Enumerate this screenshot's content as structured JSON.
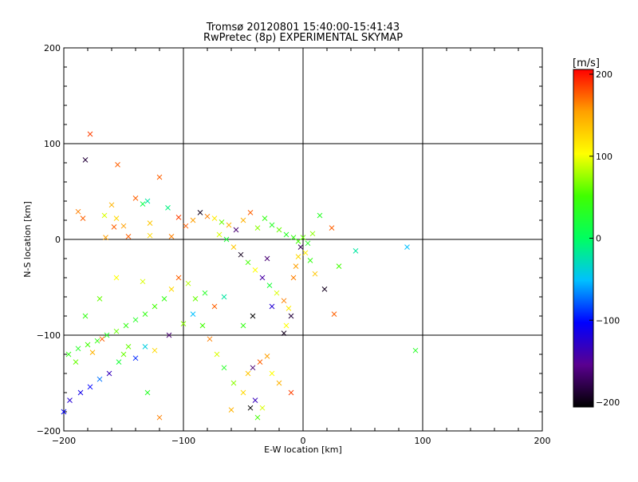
{
  "chart_data": {
    "type": "scatter",
    "title": "Tromsø 20120801 15:40:00-15:41:43",
    "subtitle": "RwPretec (8p) EXPERIMENTAL SKYMAP",
    "xlabel": "E-W location [km]",
    "ylabel": "N-S location [km]",
    "xlim": [
      -200,
      200
    ],
    "ylim": [
      -200,
      200
    ],
    "x_ticks": [
      "−200",
      "−100",
      "0",
      "100",
      "200"
    ],
    "y_ticks": [
      "−200",
      "−100",
      "0",
      "100",
      "200"
    ],
    "grid": true,
    "colorbar": {
      "label": "[m/s]",
      "min": -200,
      "max": 200,
      "ticks": [
        "200",
        "100",
        "0",
        "−100",
        "−200"
      ],
      "colors": [
        "#000000",
        "#5a0090",
        "#0000ff",
        "#00c0ff",
        "#00ff60",
        "#40ff00",
        "#ffff00",
        "#ffa000",
        "#ff0000"
      ]
    },
    "points": [
      {
        "x": -178,
        "y": 110,
        "v": 180
      },
      {
        "x": -182,
        "y": 83,
        "v": -180
      },
      {
        "x": -155,
        "y": 78,
        "v": 170
      },
      {
        "x": -120,
        "y": 65,
        "v": 170
      },
      {
        "x": -188,
        "y": 29,
        "v": 160
      },
      {
        "x": -184,
        "y": 22,
        "v": 170
      },
      {
        "x": -166,
        "y": 25,
        "v": 90
      },
      {
        "x": -160,
        "y": 36,
        "v": 140
      },
      {
        "x": -156,
        "y": 22,
        "v": 120
      },
      {
        "x": -150,
        "y": 14,
        "v": 150
      },
      {
        "x": -140,
        "y": 43,
        "v": 170
      },
      {
        "x": -134,
        "y": 37,
        "v": 10
      },
      {
        "x": -130,
        "y": 40,
        "v": -20
      },
      {
        "x": -128,
        "y": 17,
        "v": 130
      },
      {
        "x": -113,
        "y": 33,
        "v": -10
      },
      {
        "x": -104,
        "y": 23,
        "v": 180
      },
      {
        "x": -165,
        "y": 2,
        "v": 150
      },
      {
        "x": -158,
        "y": 13,
        "v": 170
      },
      {
        "x": -146,
        "y": 3,
        "v": 170
      },
      {
        "x": -128,
        "y": 4,
        "v": 120
      },
      {
        "x": -110,
        "y": 3,
        "v": 160
      },
      {
        "x": -98,
        "y": 14,
        "v": 170
      },
      {
        "x": -92,
        "y": 20,
        "v": 150
      },
      {
        "x": -86,
        "y": 28,
        "v": -190
      },
      {
        "x": -80,
        "y": 24,
        "v": 160
      },
      {
        "x": -74,
        "y": 22,
        "v": 110
      },
      {
        "x": -68,
        "y": 18,
        "v": 60
      },
      {
        "x": -62,
        "y": 15,
        "v": 140
      },
      {
        "x": -56,
        "y": 10,
        "v": -160
      },
      {
        "x": -50,
        "y": 20,
        "v": 140
      },
      {
        "x": -44,
        "y": 28,
        "v": 170
      },
      {
        "x": -38,
        "y": 12,
        "v": 70
      },
      {
        "x": -32,
        "y": 22,
        "v": 40
      },
      {
        "x": -26,
        "y": 15,
        "v": 30
      },
      {
        "x": -20,
        "y": 10,
        "v": 60
      },
      {
        "x": -14,
        "y": 5,
        "v": 30
      },
      {
        "x": -8,
        "y": 2,
        "v": 40
      },
      {
        "x": -4,
        "y": -2,
        "v": 50
      },
      {
        "x": 0,
        "y": 2,
        "v": 60
      },
      {
        "x": 4,
        "y": -4,
        "v": 30
      },
      {
        "x": 8,
        "y": 6,
        "v": 70
      },
      {
        "x": 14,
        "y": 25,
        "v": 30
      },
      {
        "x": 24,
        "y": 12,
        "v": 170
      },
      {
        "x": 30,
        "y": -28,
        "v": 50
      },
      {
        "x": 44,
        "y": -12,
        "v": -20
      },
      {
        "x": 87,
        "y": -8,
        "v": -50
      },
      {
        "x": 94,
        "y": -116,
        "v": 30
      },
      {
        "x": -70,
        "y": 5,
        "v": 90
      },
      {
        "x": -64,
        "y": 0,
        "v": 20
      },
      {
        "x": -58,
        "y": -8,
        "v": 130
      },
      {
        "x": -52,
        "y": -16,
        "v": -190
      },
      {
        "x": -46,
        "y": -24,
        "v": 50
      },
      {
        "x": -40,
        "y": -32,
        "v": 100
      },
      {
        "x": -34,
        "y": -40,
        "v": -140
      },
      {
        "x": -28,
        "y": -48,
        "v": 20
      },
      {
        "x": -22,
        "y": -56,
        "v": 90
      },
      {
        "x": -16,
        "y": -64,
        "v": 160
      },
      {
        "x": -12,
        "y": -72,
        "v": 110
      },
      {
        "x": -10,
        "y": -80,
        "v": -180
      },
      {
        "x": -14,
        "y": -90,
        "v": 100
      },
      {
        "x": -16,
        "y": -98,
        "v": -190
      },
      {
        "x": -30,
        "y": -20,
        "v": -160
      },
      {
        "x": -26,
        "y": -70,
        "v": -120
      },
      {
        "x": -42,
        "y": -80,
        "v": -200
      },
      {
        "x": -50,
        "y": -90,
        "v": 40
      },
      {
        "x": -66,
        "y": -60,
        "v": -20
      },
      {
        "x": -74,
        "y": -70,
        "v": 170
      },
      {
        "x": -82,
        "y": -56,
        "v": 30
      },
      {
        "x": -90,
        "y": -62,
        "v": 60
      },
      {
        "x": -96,
        "y": -46,
        "v": 80
      },
      {
        "x": -104,
        "y": -40,
        "v": 170
      },
      {
        "x": -110,
        "y": -52,
        "v": 120
      },
      {
        "x": -116,
        "y": -62,
        "v": 40
      },
      {
        "x": -124,
        "y": -70,
        "v": 50
      },
      {
        "x": -132,
        "y": -78,
        "v": 40
      },
      {
        "x": -140,
        "y": -84,
        "v": 30
      },
      {
        "x": -148,
        "y": -90,
        "v": 40
      },
      {
        "x": -156,
        "y": -96,
        "v": 60
      },
      {
        "x": -164,
        "y": -100,
        "v": 30
      },
      {
        "x": -172,
        "y": -106,
        "v": 40
      },
      {
        "x": -180,
        "y": -110,
        "v": 50
      },
      {
        "x": -188,
        "y": -114,
        "v": 30
      },
      {
        "x": -196,
        "y": -120,
        "v": 40
      },
      {
        "x": -190,
        "y": -128,
        "v": 60
      },
      {
        "x": -176,
        "y": -118,
        "v": 140
      },
      {
        "x": -168,
        "y": -104,
        "v": 170
      },
      {
        "x": -150,
        "y": -120,
        "v": 60
      },
      {
        "x": -140,
        "y": -124,
        "v": -90
      },
      {
        "x": -132,
        "y": -112,
        "v": -40
      },
      {
        "x": -124,
        "y": -116,
        "v": 120
      },
      {
        "x": -112,
        "y": -100,
        "v": -160
      },
      {
        "x": -100,
        "y": -88,
        "v": 70
      },
      {
        "x": -92,
        "y": -78,
        "v": -50
      },
      {
        "x": -84,
        "y": -90,
        "v": 50
      },
      {
        "x": -78,
        "y": -104,
        "v": 160
      },
      {
        "x": -72,
        "y": -120,
        "v": 90
      },
      {
        "x": -66,
        "y": -134,
        "v": 30
      },
      {
        "x": -58,
        "y": -150,
        "v": 70
      },
      {
        "x": -50,
        "y": -160,
        "v": 120
      },
      {
        "x": -44,
        "y": -176,
        "v": -200
      },
      {
        "x": -38,
        "y": -186,
        "v": 50
      },
      {
        "x": -200,
        "y": -180,
        "v": -100
      },
      {
        "x": -195,
        "y": -168,
        "v": -120
      },
      {
        "x": -186,
        "y": -160,
        "v": -110
      },
      {
        "x": -178,
        "y": -154,
        "v": -100
      },
      {
        "x": -170,
        "y": -146,
        "v": -70
      },
      {
        "x": -162,
        "y": -140,
        "v": -130
      },
      {
        "x": -154,
        "y": -128,
        "v": 20
      },
      {
        "x": -146,
        "y": -112,
        "v": 60
      },
      {
        "x": -130,
        "y": -160,
        "v": 30
      },
      {
        "x": -120,
        "y": -186,
        "v": 160
      },
      {
        "x": -46,
        "y": -140,
        "v": 130
      },
      {
        "x": -42,
        "y": -134,
        "v": -160
      },
      {
        "x": -36,
        "y": -128,
        "v": 170
      },
      {
        "x": -30,
        "y": -122,
        "v": 150
      },
      {
        "x": -26,
        "y": -140,
        "v": 100
      },
      {
        "x": -20,
        "y": -150,
        "v": 140
      },
      {
        "x": -10,
        "y": -160,
        "v": 180
      },
      {
        "x": -40,
        "y": -168,
        "v": -130
      },
      {
        "x": -34,
        "y": -176,
        "v": 90
      },
      {
        "x": -60,
        "y": -178,
        "v": 140
      },
      {
        "x": -8,
        "y": -40,
        "v": 160
      },
      {
        "x": -6,
        "y": -28,
        "v": 150
      },
      {
        "x": -4,
        "y": -18,
        "v": 120
      },
      {
        "x": -2,
        "y": -8,
        "v": -170
      },
      {
        "x": 2,
        "y": -14,
        "v": 110
      },
      {
        "x": 6,
        "y": -22,
        "v": 40
      },
      {
        "x": 10,
        "y": -36,
        "v": 130
      },
      {
        "x": 18,
        "y": -52,
        "v": -190
      },
      {
        "x": 26,
        "y": -78,
        "v": 170
      },
      {
        "x": -156,
        "y": -40,
        "v": 100
      },
      {
        "x": -134,
        "y": -44,
        "v": 90
      },
      {
        "x": -170,
        "y": -62,
        "v": 60
      },
      {
        "x": -182,
        "y": -80,
        "v": 40
      }
    ]
  }
}
